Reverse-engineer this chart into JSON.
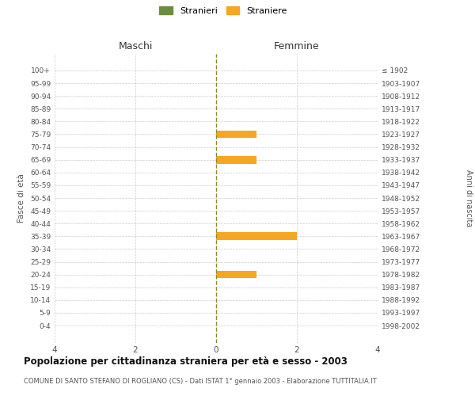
{
  "age_groups": [
    "100+",
    "95-99",
    "90-94",
    "85-89",
    "80-84",
    "75-79",
    "70-74",
    "65-69",
    "60-64",
    "55-59",
    "50-54",
    "45-49",
    "40-44",
    "35-39",
    "30-34",
    "25-29",
    "20-24",
    "15-19",
    "10-14",
    "5-9",
    "0-4"
  ],
  "birth_years": [
    "≤ 1902",
    "1903-1907",
    "1908-1912",
    "1913-1917",
    "1918-1922",
    "1923-1927",
    "1928-1932",
    "1933-1937",
    "1938-1942",
    "1943-1947",
    "1948-1952",
    "1953-1957",
    "1958-1962",
    "1963-1967",
    "1968-1972",
    "1973-1977",
    "1978-1982",
    "1983-1987",
    "1988-1992",
    "1993-1997",
    "1998-2002"
  ],
  "males_stranieri": [
    0,
    0,
    0,
    0,
    0,
    0,
    0,
    0,
    0,
    0,
    0,
    0,
    0,
    0,
    0,
    0,
    0,
    0,
    0,
    0,
    0
  ],
  "males_straniere": [
    0,
    0,
    0,
    0,
    0,
    0,
    0,
    0,
    0,
    0,
    0,
    0,
    0,
    0,
    0,
    0,
    0,
    0,
    0,
    0,
    0
  ],
  "females_stranieri": [
    0,
    0,
    0,
    0,
    0,
    0,
    0,
    0,
    0,
    0,
    0,
    0,
    0,
    0,
    0,
    0,
    0,
    0,
    0,
    0,
    0
  ],
  "females_straniere": [
    0,
    0,
    0,
    0,
    0,
    1,
    0,
    1,
    0,
    0,
    0,
    0,
    0,
    2,
    0,
    0,
    1,
    0,
    0,
    0,
    0
  ],
  "color_stranieri": "#6b8e3e",
  "color_straniere": "#f5a623",
  "xlim": 4,
  "title": "Popolazione per cittadinanza straniera per età e sesso - 2003",
  "subtitle": "COMUNE DI SANTO STEFANO DI ROGLIANO (CS) - Dati ISTAT 1° gennaio 2003 - Elaborazione TUTTITALIA.IT",
  "ylabel_left": "Fasce di età",
  "ylabel_right": "Anni di nascita",
  "xlabel_maschi": "Maschi",
  "xlabel_femmine": "Femmine",
  "legend_stranieri": "Stranieri",
  "legend_straniere": "Straniere",
  "background_color": "#ffffff",
  "grid_color": "#cccccc",
  "bar_height": 0.6
}
